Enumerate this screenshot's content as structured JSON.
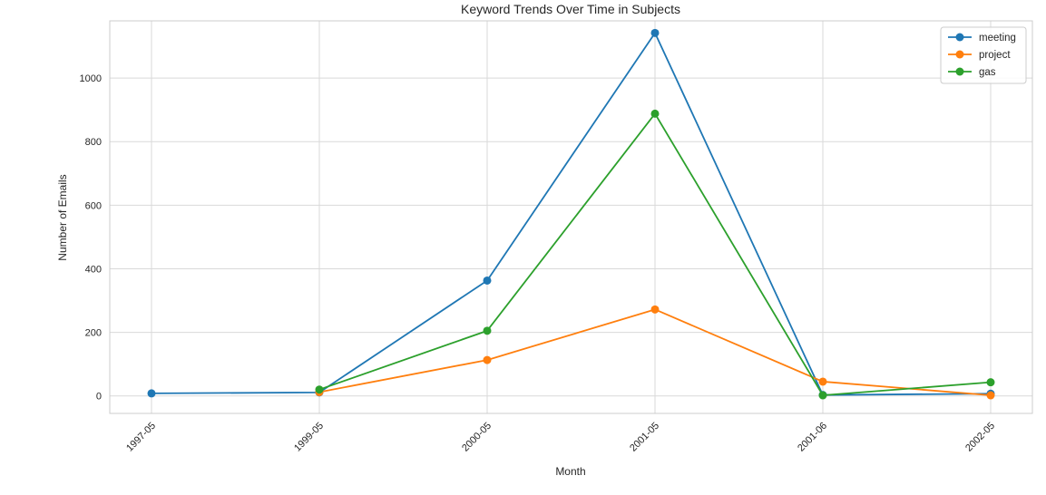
{
  "chart_data": {
    "type": "line",
    "title": "Keyword Trends Over Time in Subjects",
    "xlabel": "Month",
    "ylabel": "Number of Emails",
    "categories": [
      "1997-05",
      "1999-05",
      "2000-05",
      "2001-05",
      "2001-06",
      "2002-05"
    ],
    "ylim": [
      -55,
      1180
    ],
    "yticks": [
      0,
      200,
      400,
      600,
      800,
      1000
    ],
    "grid": true,
    "legend_position": "top-right",
    "series": [
      {
        "name": "meeting",
        "color": "#1f77b4",
        "values": [
          8,
          11,
          363,
          1142,
          3,
          7
        ]
      },
      {
        "name": "project",
        "color": "#ff7f0e",
        "values": [
          null,
          12,
          113,
          272,
          45,
          2
        ]
      },
      {
        "name": "gas",
        "color": "#2ca02c",
        "values": [
          null,
          20,
          205,
          888,
          2,
          43
        ]
      }
    ]
  }
}
